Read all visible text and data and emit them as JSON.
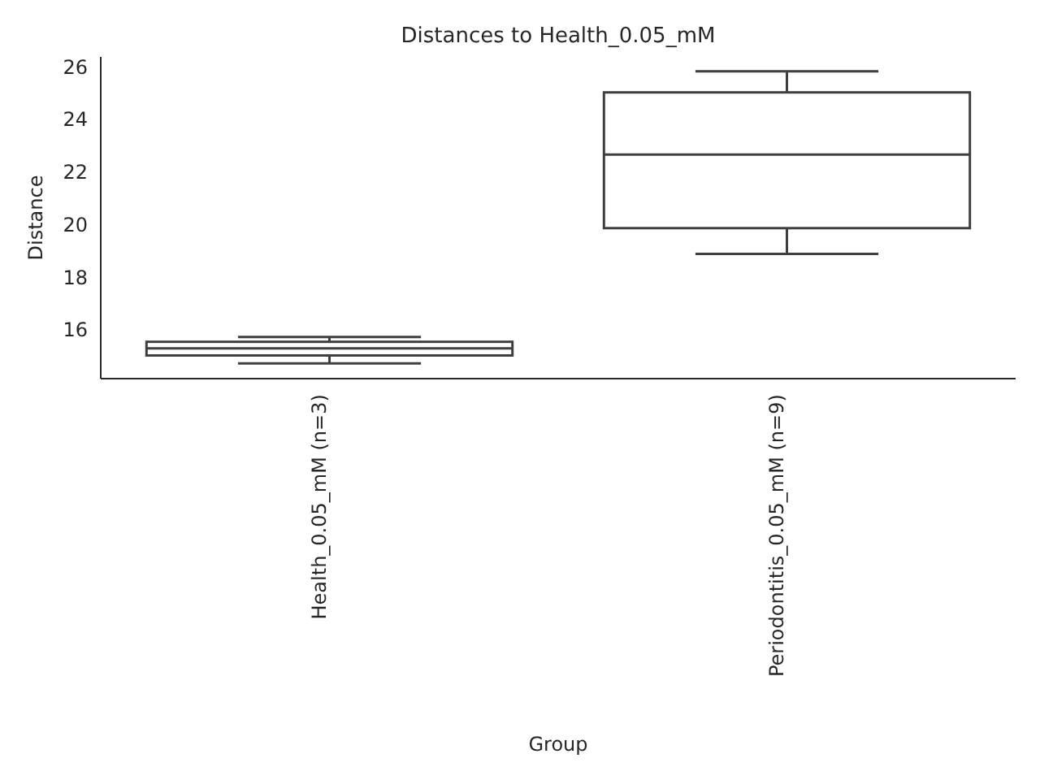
{
  "chart_data": {
    "type": "box",
    "title": "Distances to Health_0.05_mM",
    "xlabel": "Group",
    "ylabel": "Distance",
    "categories": [
      "Health_0.05_mM (n=3)",
      "Periodontitis_0.05_mM (n=9)"
    ],
    "boxes": [
      {
        "low": 14.75,
        "q1": 15.05,
        "median": 15.32,
        "q3": 15.57,
        "high": 15.75
      },
      {
        "low": 18.91,
        "q1": 19.89,
        "median": 22.69,
        "q3": 25.05,
        "high": 25.85
      }
    ],
    "ylim": [
      14.17,
      26.4
    ],
    "yticks": [
      16,
      18,
      20,
      22,
      24,
      26
    ]
  }
}
